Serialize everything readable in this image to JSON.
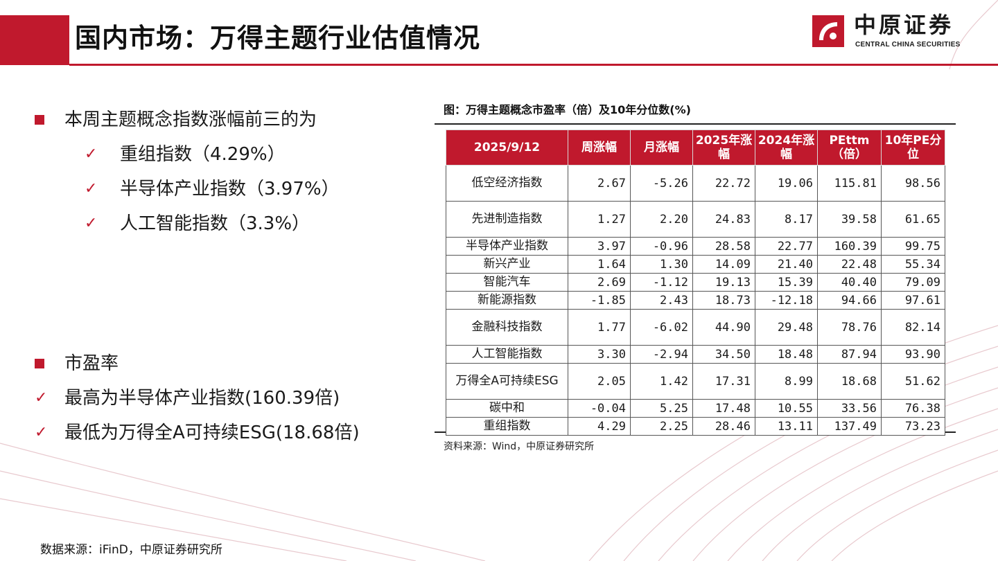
{
  "header": {
    "title": "国内市场：万得主题行业估值情况"
  },
  "logo": {
    "cn": "中原证券",
    "en": "CENTRAL CHINA SECURITIES"
  },
  "left": {
    "section1": {
      "heading": "本周主题概念指数涨幅前三的为",
      "items": [
        "重组指数（4.29%）",
        "半导体产业指数（3.97%）",
        "人工智能指数（3.3%）"
      ]
    },
    "section2": {
      "heading": "市盈率",
      "items": [
        "最高为半导体产业指数(160.39倍)",
        "最低为万得全A可持续ESG(18.68倍)"
      ]
    }
  },
  "figure": {
    "title": "图：万得主题概念市盈率（倍）及10年分位数(%)",
    "source": "资料来源：Wind，中原证券研究所"
  },
  "chart_data": {
    "type": "table",
    "columns": [
      "2025/9/12",
      "周涨幅",
      "月涨幅",
      "2025年涨幅",
      "2024年涨幅",
      "PEttm（倍）",
      "10年PE分位"
    ],
    "rows": [
      [
        "低空经济指数",
        "2.67",
        "-5.26",
        "22.72",
        "19.06",
        "115.81",
        "98.56"
      ],
      [
        "先进制造指数",
        "1.27",
        "2.20",
        "24.83",
        "8.17",
        "39.58",
        "61.65"
      ],
      [
        "半导体产业指数",
        "3.97",
        "-0.96",
        "28.58",
        "22.77",
        "160.39",
        "99.75"
      ],
      [
        "新兴产业",
        "1.64",
        "1.30",
        "14.09",
        "21.40",
        "22.48",
        "55.34"
      ],
      [
        "智能汽车",
        "2.69",
        "-1.12",
        "19.13",
        "15.39",
        "40.40",
        "79.09"
      ],
      [
        "新能源指数",
        "-1.85",
        "2.43",
        "18.73",
        "-12.18",
        "94.66",
        "97.61"
      ],
      [
        "金融科技指数",
        "1.77",
        "-6.02",
        "44.90",
        "29.48",
        "78.76",
        "82.14"
      ],
      [
        "人工智能指数",
        "3.30",
        "-2.94",
        "34.50",
        "18.48",
        "87.94",
        "93.90"
      ],
      [
        "万得全A可持续ESG",
        "2.05",
        "1.42",
        "17.31",
        "8.99",
        "18.68",
        "51.62"
      ],
      [
        "碳中和",
        "-0.04",
        "5.25",
        "17.48",
        "10.55",
        "33.56",
        "76.38"
      ],
      [
        "重组指数",
        "4.29",
        "2.25",
        "28.46",
        "13.11",
        "137.49",
        "73.23"
      ]
    ]
  },
  "footer": {
    "source": "数据来源：iFinD，中原证券研究所"
  },
  "colors": {
    "accent": "#c0192d"
  }
}
